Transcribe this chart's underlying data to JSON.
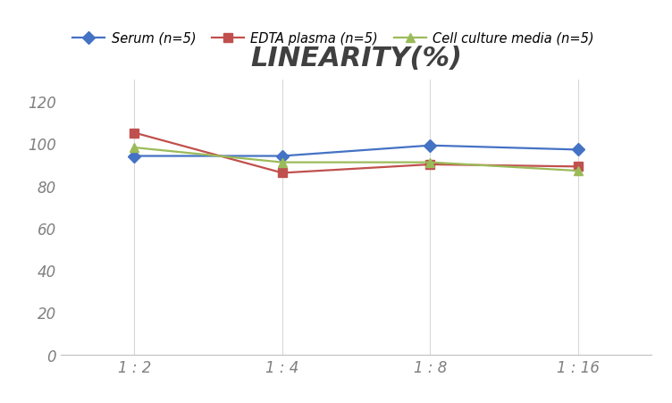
{
  "title": "LINEARITY(%)",
  "x_labels": [
    "1 : 2",
    "1 : 4",
    "1 : 8",
    "1 : 16"
  ],
  "x_positions": [
    0,
    1,
    2,
    3
  ],
  "series": [
    {
      "label": "Serum (n=5)",
      "values": [
        94,
        94,
        99,
        97
      ],
      "color": "#4472C4",
      "marker": "D",
      "linestyle": "-"
    },
    {
      "label": "EDTA plasma (n=5)",
      "values": [
        105,
        86,
        90,
        89
      ],
      "color": "#C0504D",
      "marker": "s",
      "linestyle": "-"
    },
    {
      "label": "Cell culture media (n=5)",
      "values": [
        98,
        91,
        91,
        87
      ],
      "color": "#9BBB59",
      "marker": "^",
      "linestyle": "-"
    }
  ],
  "ylim": [
    0,
    130
  ],
  "yticks": [
    0,
    20,
    40,
    60,
    80,
    100,
    120
  ],
  "background_color": "#FFFFFF",
  "grid_color": "#D8D8D8",
  "title_fontsize": 22,
  "legend_fontsize": 10.5,
  "tick_fontsize": 12
}
